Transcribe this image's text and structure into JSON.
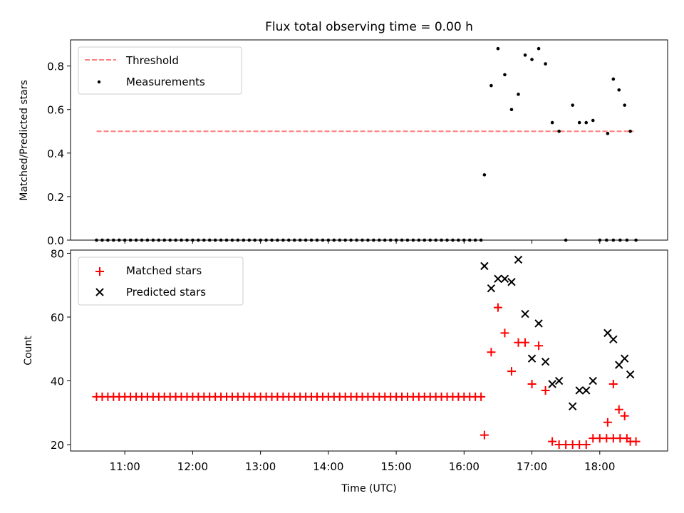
{
  "title": "Flux total observing time = 0.00 h",
  "chart_data": [
    {
      "type": "scatter",
      "ylabel": "Matched/Predicted stars",
      "xlim_hours": [
        10.2,
        19.0
      ],
      "ylim": [
        0,
        0.92
      ],
      "yticks": [
        0.0,
        0.2,
        0.4,
        0.6,
        0.8
      ],
      "ytick_labels": [
        "0.0",
        "0.2",
        "0.4",
        "0.6",
        "0.8"
      ],
      "legend_position": "upper-left",
      "legend": [
        {
          "label": "Threshold",
          "style": "dashed-line",
          "color": "#ff7f7f"
        },
        {
          "label": "Measurements",
          "style": "dot",
          "color": "#000000"
        }
      ],
      "threshold": {
        "value": 0.5,
        "x_start": "10:35",
        "x_end": "18:30"
      },
      "series": [
        {
          "name": "Measurements",
          "color": "#000000",
          "marker": "dot",
          "points": [
            [
              "10:35",
              0
            ],
            [
              "10:40",
              0
            ],
            [
              "10:45",
              0
            ],
            [
              "10:50",
              0
            ],
            [
              "10:55",
              0
            ],
            [
              "11:00",
              0
            ],
            [
              "11:05",
              0
            ],
            [
              "11:10",
              0
            ],
            [
              "11:15",
              0
            ],
            [
              "11:20",
              0
            ],
            [
              "11:25",
              0
            ],
            [
              "11:30",
              0
            ],
            [
              "11:35",
              0
            ],
            [
              "11:40",
              0
            ],
            [
              "11:45",
              0
            ],
            [
              "11:50",
              0
            ],
            [
              "11:55",
              0
            ],
            [
              "12:00",
              0
            ],
            [
              "12:05",
              0
            ],
            [
              "12:10",
              0
            ],
            [
              "12:15",
              0
            ],
            [
              "12:20",
              0
            ],
            [
              "12:25",
              0
            ],
            [
              "12:30",
              0
            ],
            [
              "12:35",
              0
            ],
            [
              "12:40",
              0
            ],
            [
              "12:45",
              0
            ],
            [
              "12:50",
              0
            ],
            [
              "12:55",
              0
            ],
            [
              "13:00",
              0
            ],
            [
              "13:05",
              0
            ],
            [
              "13:10",
              0
            ],
            [
              "13:15",
              0
            ],
            [
              "13:20",
              0
            ],
            [
              "13:25",
              0
            ],
            [
              "13:30",
              0
            ],
            [
              "13:35",
              0
            ],
            [
              "13:40",
              0
            ],
            [
              "13:45",
              0
            ],
            [
              "13:50",
              0
            ],
            [
              "13:55",
              0
            ],
            [
              "14:00",
              0
            ],
            [
              "14:05",
              0
            ],
            [
              "14:10",
              0
            ],
            [
              "14:15",
              0
            ],
            [
              "14:20",
              0
            ],
            [
              "14:25",
              0
            ],
            [
              "14:30",
              0
            ],
            [
              "14:35",
              0
            ],
            [
              "14:40",
              0
            ],
            [
              "14:45",
              0
            ],
            [
              "14:50",
              0
            ],
            [
              "14:55",
              0
            ],
            [
              "15:00",
              0
            ],
            [
              "15:05",
              0
            ],
            [
              "15:10",
              0
            ],
            [
              "15:15",
              0
            ],
            [
              "15:20",
              0
            ],
            [
              "15:25",
              0
            ],
            [
              "15:30",
              0
            ],
            [
              "15:35",
              0
            ],
            [
              "15:40",
              0
            ],
            [
              "15:45",
              0
            ],
            [
              "15:50",
              0
            ],
            [
              "15:55",
              0
            ],
            [
              "16:00",
              0
            ],
            [
              "16:05",
              0
            ],
            [
              "16:10",
              0
            ],
            [
              "16:15",
              0
            ],
            [
              "16:18",
              0.3
            ],
            [
              "16:24",
              0.71
            ],
            [
              "16:30",
              0.88
            ],
            [
              "16:36",
              0.76
            ],
            [
              "16:42",
              0.6
            ],
            [
              "16:48",
              0.67
            ],
            [
              "16:54",
              0.85
            ],
            [
              "17:00",
              0.83
            ],
            [
              "17:06",
              0.88
            ],
            [
              "17:12",
              0.81
            ],
            [
              "17:18",
              0.54
            ],
            [
              "17:24",
              0.5
            ],
            [
              "17:30",
              0.0
            ],
            [
              "17:36",
              0.62
            ],
            [
              "17:42",
              0.54
            ],
            [
              "17:48",
              0.54
            ],
            [
              "17:54",
              0.55
            ],
            [
              "18:00",
              0.0
            ],
            [
              "18:06",
              0.0
            ],
            [
              "18:12",
              0.0
            ],
            [
              "18:18",
              0.0
            ],
            [
              "18:24",
              0.0
            ],
            [
              "18:07",
              0.49
            ],
            [
              "18:12",
              0.74
            ],
            [
              "18:17",
              0.69
            ],
            [
              "18:22",
              0.62
            ],
            [
              "18:27",
              0.5
            ],
            [
              "18:32",
              0.0
            ]
          ]
        }
      ]
    },
    {
      "type": "scatter",
      "xlabel": "Time (UTC)",
      "ylabel": "Count",
      "xlim_hours": [
        10.2,
        19.0
      ],
      "ylim": [
        18,
        81
      ],
      "yticks": [
        20,
        40,
        60,
        80
      ],
      "ytick_labels": [
        "20",
        "40",
        "60",
        "80"
      ],
      "xticks": [
        "11:00",
        "12:00",
        "13:00",
        "14:00",
        "15:00",
        "16:00",
        "17:00",
        "18:00"
      ],
      "legend_position": "upper-left",
      "legend": [
        {
          "label": "Matched stars",
          "style": "plus",
          "color": "#ff0000"
        },
        {
          "label": "Predicted stars",
          "style": "cross",
          "color": "#000000"
        }
      ],
      "series": [
        {
          "name": "Matched stars",
          "color": "#ff0000",
          "marker": "plus",
          "points": [
            [
              "10:35",
              35
            ],
            [
              "10:40",
              35
            ],
            [
              "10:45",
              35
            ],
            [
              "10:50",
              35
            ],
            [
              "10:55",
              35
            ],
            [
              "11:00",
              35
            ],
            [
              "11:05",
              35
            ],
            [
              "11:10",
              35
            ],
            [
              "11:15",
              35
            ],
            [
              "11:20",
              35
            ],
            [
              "11:25",
              35
            ],
            [
              "11:30",
              35
            ],
            [
              "11:35",
              35
            ],
            [
              "11:40",
              35
            ],
            [
              "11:45",
              35
            ],
            [
              "11:50",
              35
            ],
            [
              "11:55",
              35
            ],
            [
              "12:00",
              35
            ],
            [
              "12:05",
              35
            ],
            [
              "12:10",
              35
            ],
            [
              "12:15",
              35
            ],
            [
              "12:20",
              35
            ],
            [
              "12:25",
              35
            ],
            [
              "12:30",
              35
            ],
            [
              "12:35",
              35
            ],
            [
              "12:40",
              35
            ],
            [
              "12:45",
              35
            ],
            [
              "12:50",
              35
            ],
            [
              "12:55",
              35
            ],
            [
              "13:00",
              35
            ],
            [
              "13:05",
              35
            ],
            [
              "13:10",
              35
            ],
            [
              "13:15",
              35
            ],
            [
              "13:20",
              35
            ],
            [
              "13:25",
              35
            ],
            [
              "13:30",
              35
            ],
            [
              "13:35",
              35
            ],
            [
              "13:40",
              35
            ],
            [
              "13:45",
              35
            ],
            [
              "13:50",
              35
            ],
            [
              "13:55",
              35
            ],
            [
              "14:00",
              35
            ],
            [
              "14:05",
              35
            ],
            [
              "14:10",
              35
            ],
            [
              "14:15",
              35
            ],
            [
              "14:20",
              35
            ],
            [
              "14:25",
              35
            ],
            [
              "14:30",
              35
            ],
            [
              "14:35",
              35
            ],
            [
              "14:40",
              35
            ],
            [
              "14:45",
              35
            ],
            [
              "14:50",
              35
            ],
            [
              "14:55",
              35
            ],
            [
              "15:00",
              35
            ],
            [
              "15:05",
              35
            ],
            [
              "15:10",
              35
            ],
            [
              "15:15",
              35
            ],
            [
              "15:20",
              35
            ],
            [
              "15:25",
              35
            ],
            [
              "15:30",
              35
            ],
            [
              "15:35",
              35
            ],
            [
              "15:40",
              35
            ],
            [
              "15:45",
              35
            ],
            [
              "15:50",
              35
            ],
            [
              "15:55",
              35
            ],
            [
              "16:00",
              35
            ],
            [
              "16:05",
              35
            ],
            [
              "16:10",
              35
            ],
            [
              "16:15",
              35
            ],
            [
              "16:18",
              23
            ],
            [
              "16:24",
              49
            ],
            [
              "16:30",
              63
            ],
            [
              "16:36",
              55
            ],
            [
              "16:42",
              43
            ],
            [
              "16:48",
              52
            ],
            [
              "16:54",
              52
            ],
            [
              "17:00",
              39
            ],
            [
              "17:06",
              51
            ],
            [
              "17:12",
              37
            ],
            [
              "17:18",
              21
            ],
            [
              "17:24",
              20
            ],
            [
              "17:30",
              20
            ],
            [
              "17:36",
              20
            ],
            [
              "17:42",
              20
            ],
            [
              "17:48",
              20
            ],
            [
              "17:54",
              22
            ],
            [
              "18:00",
              22
            ],
            [
              "18:06",
              22
            ],
            [
              "18:12",
              22
            ],
            [
              "18:18",
              22
            ],
            [
              "18:24",
              22
            ],
            [
              "18:07",
              27
            ],
            [
              "18:12",
              39
            ],
            [
              "18:17",
              31
            ],
            [
              "18:22",
              29
            ],
            [
              "18:27",
              21
            ],
            [
              "18:32",
              21
            ]
          ]
        },
        {
          "name": "Predicted stars",
          "color": "#000000",
          "marker": "cross",
          "points": [
            [
              "16:18",
              76
            ],
            [
              "16:24",
              69
            ],
            [
              "16:30",
              72
            ],
            [
              "16:36",
              72
            ],
            [
              "16:42",
              71
            ],
            [
              "16:48",
              78
            ],
            [
              "16:54",
              61
            ],
            [
              "17:00",
              47
            ],
            [
              "17:06",
              58
            ],
            [
              "17:12",
              46
            ],
            [
              "17:18",
              39
            ],
            [
              "17:24",
              40
            ],
            [
              "17:36",
              32
            ],
            [
              "17:42",
              37
            ],
            [
              "17:48",
              37
            ],
            [
              "17:54",
              40
            ],
            [
              "18:07",
              55
            ],
            [
              "18:12",
              53
            ],
            [
              "18:17",
              45
            ],
            [
              "18:22",
              47
            ],
            [
              "18:27",
              42
            ]
          ]
        }
      ]
    }
  ]
}
